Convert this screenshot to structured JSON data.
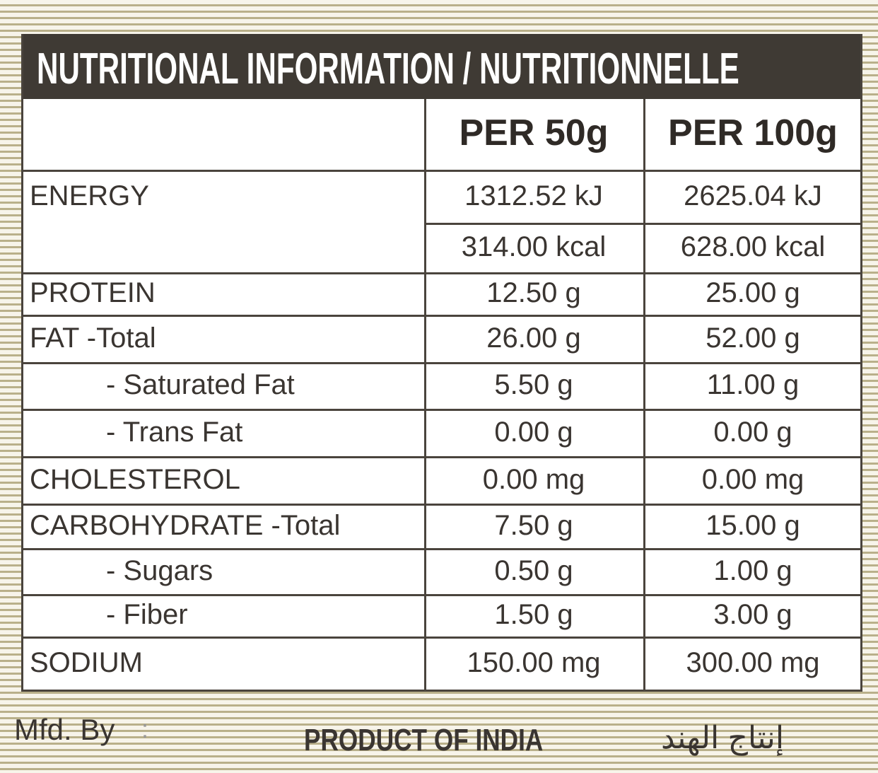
{
  "header": {
    "title": "NUTRITIONAL INFORMATION / NUTRITIONNELLE"
  },
  "table": {
    "columns": [
      "PER 50g",
      "PER 100g"
    ],
    "rows": [
      {
        "label": "ENERGY",
        "per_50g": "1312.52 kJ",
        "per_100g": "2625.04 kJ"
      },
      {
        "per_50g": "314.00 kcal",
        "per_100g": "628.00 kcal"
      },
      {
        "label": "PROTEIN",
        "per_50g": "12.50 g",
        "per_100g": "25.00 g"
      },
      {
        "label": "FAT -Total",
        "per_50g": "26.00 g",
        "per_100g": "52.00 g"
      },
      {
        "label": "- Saturated Fat",
        "per_50g": "5.50 g",
        "per_100g": "11.00 g"
      },
      {
        "label": "- Trans Fat",
        "per_50g": "0.00 g",
        "per_100g": "0.00 g"
      },
      {
        "label": "CHOLESTEROL",
        "per_50g": "0.00 mg",
        "per_100g": "0.00 mg"
      },
      {
        "label": "CARBOHYDRATE -Total",
        "per_50g": "7.50 g",
        "per_100g": "15.00 g"
      },
      {
        "label": "- Sugars",
        "per_50g": "0.50 g",
        "per_100g": "1.00 g"
      },
      {
        "label": "- Fiber",
        "per_50g": "1.50 g",
        "per_100g": "3.00 g"
      },
      {
        "label": "SODIUM",
        "per_50g": "150.00 mg",
        "per_100g": "300.00 mg"
      }
    ]
  },
  "footer": {
    "mfd_by": "Mfd. By",
    "separator": ":",
    "origin": "PRODUCT OF INDIA",
    "origin_arabic": "إنتاج الهند"
  }
}
